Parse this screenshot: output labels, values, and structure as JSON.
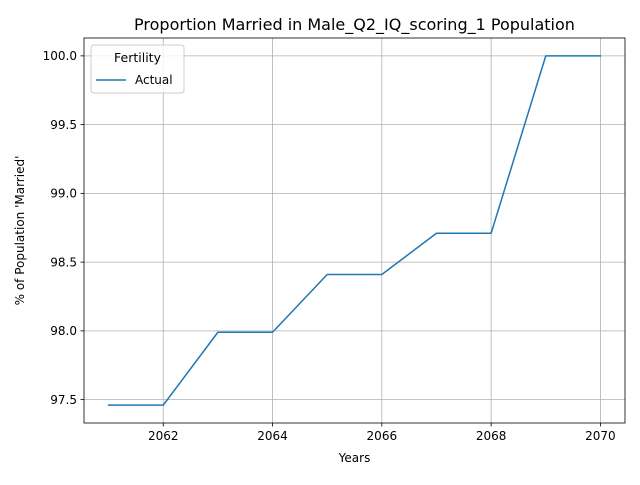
{
  "chart_data": {
    "type": "line",
    "title": "Proportion Married in Male_Q2_IQ_scoring_1 Population",
    "xlabel": "Years",
    "ylabel": "% of Population 'Married'",
    "xlim": [
      2060.55,
      2070.45
    ],
    "ylim": [
      97.33,
      100.13
    ],
    "x_ticks": [
      2062,
      2064,
      2066,
      2068,
      2070
    ],
    "y_ticks": [
      97.5,
      98.0,
      98.5,
      99.0,
      99.5,
      100.0
    ],
    "x_tick_labels": [
      "2062",
      "2064",
      "2066",
      "2068",
      "2070"
    ],
    "y_tick_labels": [
      "97.5",
      "98.0",
      "98.5",
      "99.0",
      "99.5",
      "100.0"
    ],
    "grid": true,
    "legend": {
      "title": "Fertility",
      "placement": "top-left"
    },
    "x": [
      2061,
      2062,
      2063,
      2064,
      2065,
      2066,
      2067,
      2068,
      2069,
      2070
    ],
    "series": [
      {
        "name": "Actual",
        "color": "#1f77b4",
        "values": [
          97.46,
          97.46,
          97.99,
          97.99,
          98.41,
          98.41,
          98.71,
          98.71,
          100.0,
          100.0
        ]
      }
    ]
  }
}
